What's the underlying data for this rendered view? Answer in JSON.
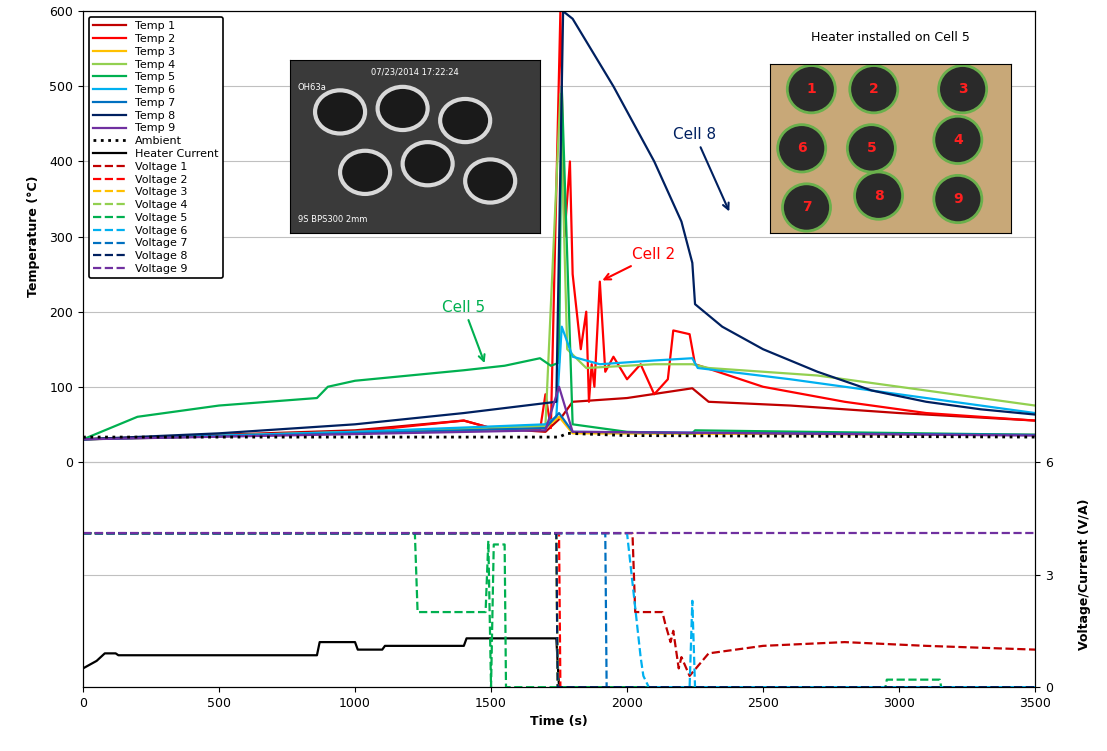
{
  "chart_data": {
    "type": "line",
    "x_label": "Time (s)",
    "y_label": "Temperature (°C)",
    "y2_label": "Voltage/Current (V/A)",
    "xlim": [
      0,
      3500
    ],
    "xticks": [
      0,
      500,
      1000,
      1500,
      2000,
      2500,
      3000,
      3500
    ],
    "ylim": [
      -300,
      600
    ],
    "yticks": [
      0,
      100,
      200,
      300,
      400,
      500,
      600
    ],
    "y2lim": [
      0,
      18
    ],
    "y2ticks": [
      0,
      3,
      6
    ],
    "grid": true,
    "legend": "upper left",
    "series": [
      {
        "name": "Temp 1",
        "color": "#c00000",
        "line_style": "solid",
        "x": [
          0,
          1000,
          1400,
          1500,
          1700,
          1760,
          1800,
          2000,
          2240,
          2300,
          2600,
          3000,
          3500
        ],
        "values": [
          30,
          42,
          55,
          45,
          40,
          60,
          80,
          85,
          98,
          80,
          75,
          65,
          55
        ]
      },
      {
        "name": "Temp 2",
        "color": "#ff0000",
        "line_style": "solid",
        "x": [
          0,
          1000,
          1400,
          1500,
          1680,
          1700,
          1720,
          1755,
          1770,
          1790,
          1800,
          1830,
          1850,
          1860,
          1870,
          1880,
          1900,
          1920,
          1950,
          2000,
          2050,
          2100,
          2150,
          2170,
          2230,
          2250,
          2500,
          2800,
          3100,
          3500
        ],
        "values": [
          30,
          40,
          55,
          45,
          42,
          90,
          45,
          600,
          300,
          400,
          250,
          150,
          200,
          80,
          130,
          100,
          240,
          120,
          140,
          110,
          130,
          90,
          110,
          175,
          170,
          130,
          100,
          80,
          65,
          55
        ]
      },
      {
        "name": "Temp 3",
        "color": "#ffc000",
        "line_style": "solid",
        "x": [
          0,
          1000,
          1700,
          1750,
          1800,
          3500
        ],
        "values": [
          30,
          38,
          45,
          60,
          38,
          36
        ]
      },
      {
        "name": "Temp 4",
        "color": "#92d050",
        "line_style": "solid",
        "x": [
          0,
          1000,
          1700,
          1755,
          1780,
          1850,
          2100,
          2240,
          2300,
          2700,
          3100,
          3500
        ],
        "values": [
          30,
          40,
          48,
          490,
          150,
          125,
          130,
          130,
          125,
          115,
          95,
          75
        ]
      },
      {
        "name": "Temp 5",
        "color": "#00b050",
        "line_style": "solid",
        "x": [
          0,
          200,
          500,
          860,
          900,
          1000,
          1200,
          1400,
          1550,
          1680,
          1720,
          1750,
          1760,
          1800,
          2000,
          2240,
          2250,
          3500
        ],
        "values": [
          30,
          60,
          75,
          85,
          100,
          108,
          115,
          122,
          128,
          138,
          128,
          132,
          500,
          50,
          40,
          38,
          42,
          36
        ]
      },
      {
        "name": "Temp 6",
        "color": "#00b0f0",
        "line_style": "solid",
        "x": [
          0,
          1000,
          1700,
          1740,
          1760,
          1800,
          1900,
          2100,
          2240,
          2260,
          2600,
          3000,
          3500
        ],
        "values": [
          30,
          40,
          50,
          60,
          180,
          140,
          130,
          135,
          138,
          125,
          110,
          90,
          65
        ]
      },
      {
        "name": "Temp 7",
        "color": "#0070c0",
        "line_style": "solid",
        "x": [
          0,
          1000,
          1700,
          1750,
          1800,
          3500
        ],
        "values": [
          30,
          38,
          45,
          65,
          40,
          36
        ]
      },
      {
        "name": "Temp 8",
        "color": "#002060",
        "line_style": "solid",
        "x": [
          0,
          500,
          1000,
          1400,
          1740,
          1765,
          1800,
          1850,
          1950,
          2100,
          2200,
          2240,
          2250,
          2350,
          2500,
          2700,
          2900,
          3100,
          3300,
          3500
        ],
        "values": [
          30,
          38,
          50,
          65,
          80,
          600,
          590,
          560,
          500,
          400,
          320,
          265,
          210,
          180,
          150,
          120,
          95,
          80,
          70,
          63
        ]
      },
      {
        "name": "Temp 9",
        "color": "#7030a0",
        "line_style": "solid",
        "x": [
          0,
          1000,
          1700,
          1750,
          1800,
          3500
        ],
        "values": [
          30,
          37,
          42,
          100,
          40,
          35
        ]
      },
      {
        "name": "Ambient",
        "color": "#000000",
        "line_style": "dotted",
        "x": [
          0,
          1750,
          1780,
          2000,
          3500
        ],
        "values": [
          33,
          33,
          38,
          35,
          33
        ]
      },
      {
        "name": "Heater Current",
        "color": "#000000",
        "line_style": "solid",
        "axis": "y2",
        "x": [
          0,
          50,
          80,
          120,
          130,
          860,
          870,
          1000,
          1010,
          1100,
          1110,
          1400,
          1410,
          1740,
          1750,
          3500
        ],
        "values": [
          0.5,
          0.7,
          0.9,
          0.9,
          0.85,
          0.85,
          1.2,
          1.2,
          1.0,
          1.0,
          1.1,
          1.1,
          1.3,
          1.3,
          0,
          0
        ]
      },
      {
        "name": "Voltage 1",
        "color": "#c00000",
        "line_style": "dashed",
        "axis": "y2",
        "x": [
          0,
          2020,
          2030,
          2130,
          2140,
          2160,
          2170,
          2190,
          2200,
          2230,
          2300,
          2500,
          2800,
          3100,
          3500
        ],
        "values": [
          4.1,
          4.1,
          2.0,
          2.0,
          1.7,
          1.2,
          1.5,
          0.5,
          0.8,
          0.3,
          0.9,
          1.1,
          1.2,
          1.1,
          1.0
        ]
      },
      {
        "name": "Voltage 2",
        "color": "#ff0000",
        "line_style": "dashed",
        "axis": "y2",
        "x": [
          0,
          1750,
          1755,
          3500
        ],
        "values": [
          4.1,
          4.1,
          0,
          0
        ]
      },
      {
        "name": "Voltage 3",
        "color": "#ffc000",
        "line_style": "dashed",
        "axis": "y2",
        "x": [
          0,
          1740,
          1745,
          3500
        ],
        "values": [
          4.1,
          4.1,
          0,
          0
        ]
      },
      {
        "name": "Voltage 4",
        "color": "#92d050",
        "line_style": "dashed",
        "axis": "y2",
        "x": [
          0,
          1740,
          1745,
          3500
        ],
        "values": [
          4.1,
          4.1,
          0,
          0
        ]
      },
      {
        "name": "Voltage 5",
        "color": "#00b050",
        "line_style": "dashed",
        "axis": "y2",
        "x": [
          0,
          1220,
          1230,
          1480,
          1490,
          1500,
          1510,
          1550,
          1555,
          2950,
          2955,
          3150,
          3155,
          3500
        ],
        "values": [
          4.1,
          4.1,
          2.0,
          2.0,
          3.9,
          0,
          3.8,
          3.8,
          0,
          0,
          0.2,
          0.2,
          0,
          0
        ]
      },
      {
        "name": "Voltage 6",
        "color": "#00b0f0",
        "line_style": "dashed",
        "axis": "y2",
        "x": [
          0,
          2000,
          2050,
          2060,
          2080,
          2230,
          2240,
          2250,
          3500
        ],
        "values": [
          4.1,
          4.1,
          0.8,
          0.3,
          0,
          0,
          2.3,
          0,
          0
        ]
      },
      {
        "name": "Voltage 7",
        "color": "#0070c0",
        "line_style": "dashed",
        "axis": "y2",
        "x": [
          0,
          1920,
          1925,
          3500
        ],
        "values": [
          4.1,
          4.1,
          0,
          0
        ]
      },
      {
        "name": "Voltage 8",
        "color": "#002060",
        "line_style": "dashed",
        "axis": "y2",
        "x": [
          0,
          1740,
          1745,
          3500
        ],
        "values": [
          4.1,
          4.1,
          0,
          0
        ]
      },
      {
        "name": "Voltage 9",
        "color": "#7030a0",
        "line_style": "dashed",
        "axis": "y2",
        "x": [
          0,
          3500
        ],
        "values": [
          4.1,
          4.1
        ]
      }
    ],
    "annotations": [
      {
        "text": "Cell 5",
        "color": "#00b050",
        "xy": [
          1480,
          128
        ],
        "xytext": [
          1320,
          200
        ]
      },
      {
        "text": "Cell 8",
        "color": "#002060",
        "xy": [
          2380,
          330
        ],
        "xytext": [
          2170,
          430
        ]
      },
      {
        "text": "Cell 2",
        "color": "#ff0000",
        "xy": [
          1900,
          240
        ],
        "xytext": [
          2020,
          270
        ]
      }
    ],
    "insets": [
      {
        "type": "thermal_image",
        "texts": [
          "07/23/2014 17:22:24",
          "OH63a",
          "9S BPS300 2mm"
        ]
      },
      {
        "type": "photo",
        "title": "Heater installed on Cell 5",
        "labels": [
          "1",
          "2",
          "3",
          "4",
          "5",
          "6",
          "7",
          "8",
          "9"
        ]
      }
    ]
  }
}
